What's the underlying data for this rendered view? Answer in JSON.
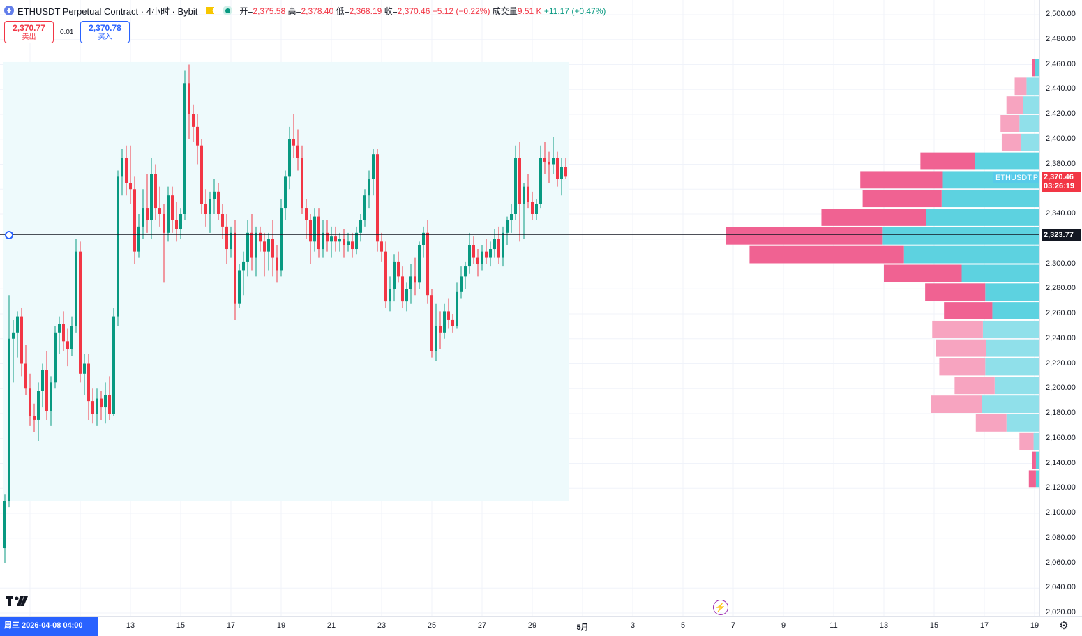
{
  "legend": {
    "symbol_title": "ETHUSDT Perpetual Contract · 4小时 · Bybit",
    "open_label": "开=",
    "open": "2,375.58",
    "high_label": "高=",
    "high": "2,378.40",
    "low_label": "低=",
    "low": "2,368.19",
    "close_label": "收=",
    "close": "2,370.46",
    "change": "−5.12 (−0.22%)",
    "volume_label": "成交量",
    "volume": "9.51 K",
    "volume_change": "+11.17 (+0.47%)"
  },
  "trade": {
    "sell_price": "2,370.77",
    "sell_label": "卖出",
    "spread": "0.01",
    "buy_price": "2,370.78",
    "buy_label": "买入"
  },
  "price_labels": {
    "last_price": "2,370.46",
    "countdown": "03:26:19",
    "symbol_tag": "ETHUSDT.P",
    "hline_price": "2,323.77"
  },
  "price_axis": [
    "2,500.00",
    "2,480.00",
    "2,460.00",
    "2,440.00",
    "2,420.00",
    "2,400.00",
    "2,380.00",
    "2,360.00",
    "2,340.00",
    "2,320.00",
    "2,300.00",
    "2,280.00",
    "2,260.00",
    "2,240.00",
    "2,220.00",
    "2,200.00",
    "2,180.00",
    "2,160.00",
    "2,140.00",
    "2,120.00",
    "2,100.00",
    "2,080.00",
    "2,060.00",
    "2,040.00",
    "2,020.00"
  ],
  "time_axis": [
    {
      "label": "13"
    },
    {
      "label": "15"
    },
    {
      "label": "17"
    },
    {
      "label": "19"
    },
    {
      "label": "21"
    },
    {
      "label": "23"
    },
    {
      "label": "25"
    },
    {
      "label": "27"
    },
    {
      "label": "29"
    },
    {
      "label": "5月",
      "bold": true
    },
    {
      "label": "3"
    },
    {
      "label": "5"
    },
    {
      "label": "7"
    },
    {
      "label": "9"
    },
    {
      "label": "11"
    },
    {
      "label": "13"
    },
    {
      "label": "15"
    },
    {
      "label": "17"
    },
    {
      "label": "19"
    }
  ],
  "cursor_date": "周三 2026-04-08   04:00",
  "colors": {
    "up": "#089981",
    "down": "#f23645",
    "vp_up": "#5dd2e0",
    "vp_down": "#f06292",
    "vp_up_light": "#90e0ea",
    "vp_down_light": "#f7a4c0",
    "range_bg": "#eefafc"
  },
  "icons": {
    "coin": "eth-coin-icon",
    "flag": "flag-icon",
    "status": "market-open-icon",
    "logo": "tradingview-logo-icon",
    "lightning": "lightning-icon",
    "settings": "gear-icon"
  },
  "candles": [
    [
      2072,
      2115,
      2060,
      2110
    ],
    [
      2110,
      2275,
      2105,
      2240
    ],
    [
      2240,
      2255,
      2205,
      2245
    ],
    [
      2245,
      2262,
      2225,
      2258
    ],
    [
      2258,
      2265,
      2210,
      2220
    ],
    [
      2220,
      2235,
      2195,
      2200
    ],
    [
      2200,
      2212,
      2170,
      2178
    ],
    [
      2178,
      2188,
      2165,
      2175
    ],
    [
      2175,
      2205,
      2158,
      2198
    ],
    [
      2198,
      2220,
      2185,
      2215
    ],
    [
      2215,
      2230,
      2175,
      2182
    ],
    [
      2182,
      2210,
      2170,
      2205
    ],
    [
      2205,
      2250,
      2200,
      2245
    ],
    [
      2245,
      2258,
      2228,
      2252
    ],
    [
      2252,
      2262,
      2230,
      2238
    ],
    [
      2238,
      2248,
      2218,
      2232
    ],
    [
      2232,
      2258,
      2226,
      2250
    ],
    [
      2250,
      2320,
      2245,
      2310
    ],
    [
      2310,
      2318,
      2205,
      2212
    ],
    [
      2212,
      2228,
      2195,
      2220
    ],
    [
      2220,
      2228,
      2175,
      2190
    ],
    [
      2190,
      2200,
      2172,
      2180
    ],
    [
      2180,
      2200,
      2170,
      2192
    ],
    [
      2192,
      2198,
      2175,
      2185
    ],
    [
      2185,
      2205,
      2172,
      2195
    ],
    [
      2195,
      2210,
      2175,
      2180
    ],
    [
      2180,
      2265,
      2178,
      2258
    ],
    [
      2258,
      2375,
      2250,
      2370
    ],
    [
      2370,
      2392,
      2355,
      2385
    ],
    [
      2385,
      2395,
      2355,
      2365
    ],
    [
      2365,
      2395,
      2348,
      2360
    ],
    [
      2360,
      2370,
      2300,
      2310
    ],
    [
      2310,
      2340,
      2305,
      2330
    ],
    [
      2330,
      2360,
      2320,
      2345
    ],
    [
      2345,
      2372,
      2325,
      2335
    ],
    [
      2335,
      2385,
      2320,
      2372
    ],
    [
      2372,
      2380,
      2335,
      2345
    ],
    [
      2345,
      2362,
      2330,
      2340
    ],
    [
      2340,
      2348,
      2285,
      2325
    ],
    [
      2325,
      2362,
      2318,
      2355
    ],
    [
      2355,
      2362,
      2325,
      2335
    ],
    [
      2335,
      2350,
      2318,
      2328
    ],
    [
      2328,
      2345,
      2320,
      2340
    ],
    [
      2340,
      2455,
      2335,
      2445
    ],
    [
      2445,
      2460,
      2400,
      2420
    ],
    [
      2420,
      2428,
      2398,
      2410
    ],
    [
      2410,
      2420,
      2380,
      2395
    ],
    [
      2395,
      2400,
      2340,
      2348
    ],
    [
      2348,
      2360,
      2330,
      2340
    ],
    [
      2340,
      2358,
      2325,
      2352
    ],
    [
      2352,
      2368,
      2340,
      2358
    ],
    [
      2358,
      2365,
      2335,
      2340
    ],
    [
      2340,
      2348,
      2320,
      2330
    ],
    [
      2330,
      2340,
      2300,
      2312
    ],
    [
      2312,
      2330,
      2305,
      2325
    ],
    [
      2325,
      2335,
      2255,
      2268
    ],
    [
      2268,
      2300,
      2265,
      2295
    ],
    [
      2295,
      2310,
      2275,
      2302
    ],
    [
      2302,
      2335,
      2290,
      2325
    ],
    [
      2325,
      2340,
      2295,
      2305
    ],
    [
      2305,
      2330,
      2290,
      2325
    ],
    [
      2325,
      2330,
      2310,
      2318
    ],
    [
      2318,
      2325,
      2290,
      2310
    ],
    [
      2310,
      2325,
      2295,
      2320
    ],
    [
      2320,
      2335,
      2290,
      2305
    ],
    [
      2305,
      2315,
      2285,
      2295
    ],
    [
      2295,
      2352,
      2290,
      2345
    ],
    [
      2345,
      2375,
      2335,
      2370
    ],
    [
      2370,
      2410,
      2360,
      2400
    ],
    [
      2400,
      2420,
      2385,
      2395
    ],
    [
      2395,
      2408,
      2375,
      2385
    ],
    [
      2385,
      2395,
      2340,
      2345
    ],
    [
      2345,
      2352,
      2320,
      2335
    ],
    [
      2335,
      2340,
      2300,
      2318
    ],
    [
      2318,
      2345,
      2310,
      2338
    ],
    [
      2338,
      2345,
      2305,
      2312
    ],
    [
      2312,
      2335,
      2305,
      2325
    ],
    [
      2325,
      2335,
      2310,
      2318
    ],
    [
      2318,
      2330,
      2305,
      2322
    ],
    [
      2322,
      2330,
      2310,
      2318
    ],
    [
      2318,
      2325,
      2310,
      2320
    ],
    [
      2320,
      2328,
      2305,
      2315
    ],
    [
      2315,
      2325,
      2310,
      2318
    ],
    [
      2318,
      2325,
      2305,
      2312
    ],
    [
      2312,
      2330,
      2308,
      2325
    ],
    [
      2325,
      2340,
      2318,
      2335
    ],
    [
      2335,
      2360,
      2330,
      2355
    ],
    [
      2355,
      2375,
      2345,
      2368
    ],
    [
      2368,
      2392,
      2355,
      2388
    ],
    [
      2388,
      2392,
      2310,
      2318
    ],
    [
      2318,
      2325,
      2302,
      2310
    ],
    [
      2310,
      2318,
      2265,
      2270
    ],
    [
      2270,
      2290,
      2262,
      2280
    ],
    [
      2280,
      2308,
      2270,
      2302
    ],
    [
      2302,
      2310,
      2285,
      2290
    ],
    [
      2290,
      2298,
      2265,
      2270
    ],
    [
      2270,
      2285,
      2262,
      2280
    ],
    [
      2280,
      2300,
      2268,
      2290
    ],
    [
      2290,
      2305,
      2275,
      2285
    ],
    [
      2285,
      2318,
      2280,
      2315
    ],
    [
      2315,
      2330,
      2305,
      2325
    ],
    [
      2325,
      2335,
      2268,
      2275
    ],
    [
      2275,
      2280,
      2225,
      2230
    ],
    [
      2230,
      2268,
      2222,
      2250
    ],
    [
      2250,
      2262,
      2232,
      2245
    ],
    [
      2245,
      2268,
      2240,
      2262
    ],
    [
      2262,
      2272,
      2248,
      2255
    ],
    [
      2255,
      2260,
      2245,
      2250
    ],
    [
      2250,
      2285,
      2248,
      2278
    ],
    [
      2278,
      2298,
      2272,
      2290
    ],
    [
      2290,
      2302,
      2280,
      2298
    ],
    [
      2298,
      2325,
      2292,
      2315
    ],
    [
      2315,
      2322,
      2300,
      2305
    ],
    [
      2305,
      2312,
      2290,
      2300
    ],
    [
      2300,
      2315,
      2295,
      2310
    ],
    [
      2310,
      2320,
      2300,
      2305
    ],
    [
      2305,
      2318,
      2298,
      2312
    ],
    [
      2312,
      2328,
      2305,
      2320
    ],
    [
      2320,
      2330,
      2300,
      2305
    ],
    [
      2305,
      2330,
      2298,
      2325
    ],
    [
      2325,
      2338,
      2315,
      2335
    ],
    [
      2335,
      2348,
      2325,
      2340
    ],
    [
      2340,
      2395,
      2335,
      2385
    ],
    [
      2385,
      2398,
      2318,
      2348
    ],
    [
      2348,
      2365,
      2320,
      2362
    ],
    [
      2362,
      2372,
      2345,
      2350
    ],
    [
      2350,
      2358,
      2335,
      2340
    ],
    [
      2340,
      2352,
      2335,
      2348
    ],
    [
      2348,
      2395,
      2345,
      2385
    ],
    [
      2385,
      2398,
      2372,
      2382
    ],
    [
      2382,
      2390,
      2365,
      2380
    ],
    [
      2380,
      2402,
      2372,
      2385
    ],
    [
      2385,
      2390,
      2362,
      2368
    ],
    [
      2368,
      2385,
      2355,
      2378
    ],
    [
      2378,
      2385,
      2368,
      2370
    ]
  ],
  "volume_profile": [
    {
      "p0": 2120,
      "p1": 2135,
      "up": 0.3,
      "dn": 0.6,
      "active": true
    },
    {
      "p0": 2135,
      "p1": 2150,
      "up": 0.3,
      "dn": 0.3,
      "active": true
    },
    {
      "p0": 2150,
      "p1": 2165,
      "up": 0.5,
      "dn": 1.2,
      "active": false
    },
    {
      "p0": 2165,
      "p1": 2180,
      "up": 2.8,
      "dn": 2.6,
      "active": false
    },
    {
      "p0": 2180,
      "p1": 2195,
      "up": 4.9,
      "dn": 4.3,
      "active": false
    },
    {
      "p0": 2195,
      "p1": 2210,
      "up": 3.8,
      "dn": 3.4,
      "active": false
    },
    {
      "p0": 2210,
      "p1": 2225,
      "up": 4.6,
      "dn": 3.9,
      "active": false
    },
    {
      "p0": 2225,
      "p1": 2240,
      "up": 4.5,
      "dn": 4.3,
      "active": false
    },
    {
      "p0": 2240,
      "p1": 2255,
      "up": 4.8,
      "dn": 4.3,
      "active": false
    },
    {
      "p0": 2255,
      "p1": 2270,
      "up": 4.0,
      "dn": 4.1,
      "active": true
    },
    {
      "p0": 2270,
      "p1": 2285,
      "up": 4.6,
      "dn": 5.1,
      "active": true
    },
    {
      "p0": 2285,
      "p1": 2300,
      "up": 6.6,
      "dn": 6.6,
      "active": true
    },
    {
      "p0": 2300,
      "p1": 2315,
      "up": 11.5,
      "dn": 13.1,
      "active": true
    },
    {
      "p0": 2315,
      "p1": 2330,
      "up": 13.3,
      "dn": 13.3,
      "active": true
    },
    {
      "p0": 2330,
      "p1": 2345,
      "up": 9.6,
      "dn": 8.9,
      "active": true
    },
    {
      "p0": 2345,
      "p1": 2360,
      "up": 8.3,
      "dn": 6.7,
      "active": true
    },
    {
      "p0": 2360,
      "p1": 2375,
      "up": 8.2,
      "dn": 7.0,
      "active": true
    },
    {
      "p0": 2375,
      "p1": 2390,
      "up": 5.5,
      "dn": 4.6,
      "active": true
    },
    {
      "p0": 2390,
      "p1": 2405,
      "up": 1.6,
      "dn": 1.6,
      "active": false
    },
    {
      "p0": 2405,
      "p1": 2420,
      "up": 1.7,
      "dn": 1.6,
      "active": false
    },
    {
      "p0": 2420,
      "p1": 2435,
      "up": 1.4,
      "dn": 1.4,
      "active": false
    },
    {
      "p0": 2435,
      "p1": 2450,
      "up": 1.1,
      "dn": 1.0,
      "active": false
    },
    {
      "p0": 2450,
      "p1": 2465,
      "up": 0.4,
      "dn": 0.2,
      "active": true
    }
  ],
  "range": {
    "price_top": 2462,
    "price_bottom": 2110
  },
  "hline_value": 2323.77,
  "last_value": 2370.46
}
